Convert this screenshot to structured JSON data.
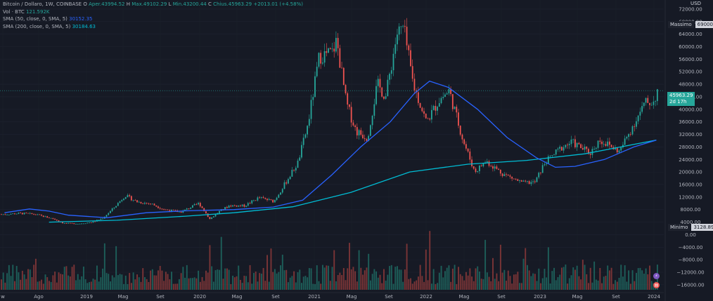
{
  "legend": {
    "symbol": "Bitcoin / Dollaro, 1W, COINBASE",
    "o_label": "O",
    "open": "Aper.43994.52",
    "h_label": "H",
    "high": "Max.49102.29",
    "l_label": "L",
    "low": "Min.43200.44",
    "c_label": "C",
    "close": "Chius.45963.29",
    "change": "+2013.01 (+4.58%)",
    "vol_label": "Vol · BTC",
    "vol_value": "121.592K",
    "sma50_label": "SMA (50, close, 0, SMA, 5)",
    "sma50_value": "30152.35",
    "sma200_label": "SMA (200, close, 0, SMA, 5)",
    "sma200_value": "30184.63"
  },
  "currency": "USD",
  "max_badge": {
    "label": "Massimo",
    "value": "69000.00"
  },
  "min_badge": {
    "label": "Minimo",
    "value": "3128.89"
  },
  "last_price": {
    "value": "45963.29",
    "countdown": "2d 17h"
  },
  "colors": {
    "up": "#26a69a",
    "down": "#ef5350",
    "sma50": "#2962ff",
    "sma200": "#00bcd4",
    "bg": "#161a25"
  },
  "chart_data": {
    "type": "candlestick",
    "title": "Bitcoin / Dollaro, 1W, COINBASE",
    "y_ticks": [
      "72000.00",
      "68000.00",
      "64000.00",
      "60000.00",
      "56000.00",
      "52000.00",
      "48000.00",
      "44000.00",
      "40000.00",
      "36000.00",
      "32000.00",
      "28000.00",
      "24000.00",
      "20000.00",
      "16000.00",
      "12000.00",
      "8000.00",
      "4000.00",
      "0.00",
      "−4000.00",
      "−8000.00",
      "−12000.00",
      "−16000.00"
    ],
    "x_ticks": [
      "w",
      "Ago",
      "2019",
      "Mag",
      "Set",
      "2020",
      "Mag",
      "Set",
      "2021",
      "Mag",
      "Set",
      "2022",
      "Mag",
      "Set",
      "2023",
      "Mag",
      "Set",
      "2024"
    ],
    "price_series": [
      [
        "2018-06-15",
        6500
      ],
      [
        "2018-08-01",
        6800
      ],
      [
        "2018-09-15",
        6500
      ],
      [
        "2018-11-15",
        5000
      ],
      [
        "2018-12-15",
        3600
      ],
      [
        "2019-02-01",
        3500
      ],
      [
        "2019-03-15",
        4000
      ],
      [
        "2019-04-15",
        5200
      ],
      [
        "2019-05-15",
        8000
      ],
      [
        "2019-06-25",
        12500
      ],
      [
        "2019-08-01",
        10500
      ],
      [
        "2019-09-15",
        9800
      ],
      [
        "2019-10-25",
        8000
      ],
      [
        "2019-12-15",
        7200
      ],
      [
        "2020-02-10",
        10000
      ],
      [
        "2020-03-15",
        5000
      ],
      [
        "2020-04-15",
        7500
      ],
      [
        "2020-05-15",
        9300
      ],
      [
        "2020-07-01",
        9200
      ],
      [
        "2020-08-15",
        11800
      ],
      [
        "2020-10-01",
        10600
      ],
      [
        "2020-11-15",
        18000
      ],
      [
        "2020-12-15",
        23000
      ],
      [
        "2021-01-15",
        35000
      ],
      [
        "2021-02-20",
        57000
      ],
      [
        "2021-04-01",
        58000
      ],
      [
        "2021-04-15",
        62000
      ],
      [
        "2021-05-15",
        42000
      ],
      [
        "2021-06-15",
        33000
      ],
      [
        "2021-07-20",
        31000
      ],
      [
        "2021-08-20",
        48000
      ],
      [
        "2021-09-15",
        44000
      ],
      [
        "2021-10-20",
        64000
      ],
      [
        "2021-11-10",
        66000
      ],
      [
        "2021-12-10",
        48000
      ],
      [
        "2022-01-20",
        36000
      ],
      [
        "2022-03-01",
        43000
      ],
      [
        "2022-04-01",
        46000
      ],
      [
        "2022-05-15",
        30000
      ],
      [
        "2022-06-20",
        20000
      ],
      [
        "2022-07-25",
        23500
      ],
      [
        "2022-09-15",
        19500
      ],
      [
        "2022-11-15",
        16500
      ],
      [
        "2022-12-25",
        16700
      ],
      [
        "2023-01-25",
        23000
      ],
      [
        "2023-03-20",
        28000
      ],
      [
        "2023-04-20",
        29500
      ],
      [
        "2023-06-15",
        26000
      ],
      [
        "2023-07-15",
        30300
      ],
      [
        "2023-09-15",
        26500
      ],
      [
        "2023-10-25",
        34500
      ],
      [
        "2023-12-05",
        42000
      ],
      [
        "2024-01-01",
        42500
      ],
      [
        "2024-01-10",
        45963
      ]
    ],
    "sma50_series": [
      [
        "2018-06-15",
        7000
      ],
      [
        "2018-09-01",
        8200
      ],
      [
        "2018-11-01",
        7500
      ],
      [
        "2019-01-01",
        6200
      ],
      [
        "2019-05-01",
        5400
      ],
      [
        "2019-09-01",
        7000
      ],
      [
        "2020-01-01",
        7600
      ],
      [
        "2020-06-01",
        8000
      ],
      [
        "2020-10-01",
        8800
      ],
      [
        "2021-01-01",
        11000
      ],
      [
        "2021-04-01",
        19000
      ],
      [
        "2021-07-01",
        28000
      ],
      [
        "2021-10-01",
        36000
      ],
      [
        "2021-12-15",
        45000
      ],
      [
        "2022-02-01",
        49000
      ],
      [
        "2022-04-01",
        47000
      ],
      [
        "2022-07-01",
        40000
      ],
      [
        "2022-10-01",
        31000
      ],
      [
        "2023-01-01",
        24500
      ],
      [
        "2023-03-01",
        21500
      ],
      [
        "2023-05-01",
        21800
      ],
      [
        "2023-08-01",
        24000
      ],
      [
        "2023-11-01",
        28000
      ],
      [
        "2024-01-10",
        30152
      ]
    ],
    "sma200_series": [
      [
        "2018-11-01",
        4000
      ],
      [
        "2019-06-01",
        4600
      ],
      [
        "2020-01-01",
        5900
      ],
      [
        "2020-06-01",
        7000
      ],
      [
        "2020-12-01",
        8900
      ],
      [
        "2021-06-01",
        13500
      ],
      [
        "2021-12-01",
        20000
      ],
      [
        "2022-06-01",
        22500
      ],
      [
        "2022-12-01",
        23700
      ],
      [
        "2023-06-01",
        25800
      ],
      [
        "2024-01-10",
        30185
      ]
    ],
    "max_value": 69000,
    "min_value": 3128.89,
    "last_value": 45963.29
  }
}
